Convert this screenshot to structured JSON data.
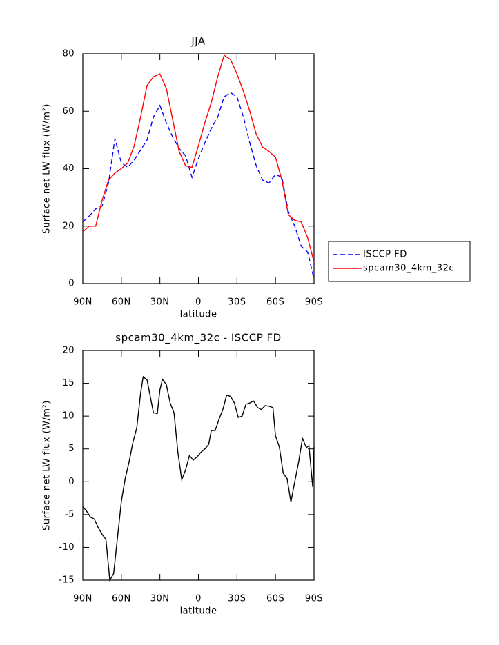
{
  "chart_data": [
    {
      "type": "line",
      "title": "JJA",
      "xlabel": "latitude",
      "ylabel": "Surface net LW flux (W/m²)",
      "x": [
        90,
        85,
        80,
        75,
        70,
        65,
        60,
        55,
        50,
        45,
        40,
        35,
        30,
        25,
        20,
        15,
        10,
        5,
        0,
        -5,
        -10,
        -15,
        -20,
        -25,
        -30,
        -35,
        -40,
        -45,
        -50,
        -55,
        -60,
        -65,
        -70,
        -75,
        -80,
        -85,
        -90
      ],
      "series": [
        {
          "name": "ISCCP FD",
          "color": "#0000ff",
          "linestyle": "dashed",
          "values": [
            21.5,
            23.5,
            26,
            27,
            35,
            50.5,
            42,
            40.5,
            43,
            46.5,
            50,
            58,
            62,
            56,
            51,
            47,
            44.5,
            37,
            43.5,
            49,
            54,
            58,
            65,
            66.5,
            65,
            58,
            49,
            41,
            36,
            35,
            38,
            37,
            25,
            20,
            13,
            11,
            1.5
          ]
        },
        {
          "name": "spcam30_4km_32c",
          "color": "#ff0000",
          "linestyle": "solid",
          "values": [
            18,
            20,
            20,
            29,
            36,
            38.5,
            40,
            42,
            48,
            58,
            69,
            72,
            73,
            68,
            57,
            46,
            41,
            40.5,
            48,
            56,
            63,
            72,
            79.5,
            78,
            73,
            67,
            60,
            52,
            47.5,
            46,
            44,
            36,
            24,
            22,
            21.5,
            16,
            7.5
          ]
        }
      ],
      "xlim": [
        90,
        -90
      ],
      "xticks": [
        {
          "value": 90,
          "label": "90N"
        },
        {
          "value": 60,
          "label": "60N"
        },
        {
          "value": 30,
          "label": "30N"
        },
        0,
        {
          "value": -30,
          "label": "30S"
        },
        {
          "value": -60,
          "label": "60S"
        },
        {
          "value": -90,
          "label": "90S"
        }
      ],
      "ylim": [
        0,
        80
      ],
      "yticks": [
        0,
        20,
        40,
        60,
        80
      ],
      "legend": "right"
    },
    {
      "type": "line",
      "title": "spcam30_4km_32c - ISCCP FD",
      "xlabel": "latitude",
      "ylabel": "Surface net LW flux (W/m²)",
      "x": [
        90,
        87,
        84,
        81,
        78,
        75,
        72,
        69,
        66,
        60,
        57,
        54,
        51,
        48,
        45,
        43,
        40,
        37,
        35,
        32,
        30,
        28,
        25,
        22,
        19,
        16,
        13,
        10,
        7,
        4,
        1,
        -2,
        -5,
        -8,
        -10,
        -13,
        -16,
        -19,
        -22,
        -25,
        -28,
        -31,
        -34,
        -37,
        -40,
        -43,
        -46,
        -49,
        -52,
        -55,
        -58,
        -60,
        -63,
        -66,
        -69,
        -72,
        -75,
        -78,
        -81,
        -84,
        -86,
        -89,
        -90
      ],
      "series": [
        {
          "name": null,
          "color": "#000000",
          "linestyle": "solid",
          "values": [
            -3.8,
            -4.5,
            -5.4,
            -5.7,
            -7,
            -8,
            -8.8,
            -15,
            -14,
            -3,
            0.5,
            3,
            6,
            8.2,
            13.5,
            16,
            15.5,
            12.5,
            10.5,
            10.4,
            14,
            15.6,
            14.8,
            12,
            10.5,
            4.5,
            0.3,
            1.8,
            4,
            3.3,
            3.8,
            4.5,
            5,
            5.7,
            7.8,
            7.8,
            9.5,
            11,
            13.2,
            13,
            12,
            9.8,
            10,
            11.8,
            12,
            12.3,
            11.3,
            11,
            11.6,
            11.5,
            11.3,
            7,
            5.3,
            1.3,
            0.5,
            -3.1,
            0,
            3,
            6.6,
            5.2,
            5.5,
            -0.8,
            5.3
          ]
        }
      ],
      "xlim": [
        90,
        -90
      ],
      "xticks": [
        {
          "value": 90,
          "label": "90N"
        },
        {
          "value": 60,
          "label": "60N"
        },
        {
          "value": 30,
          "label": "30N"
        },
        0,
        {
          "value": -30,
          "label": "30S"
        },
        {
          "value": -60,
          "label": "60S"
        },
        {
          "value": -90,
          "label": "90S"
        }
      ],
      "ylim": [
        -15,
        20
      ],
      "yticks": [
        -15,
        -10,
        -5,
        0,
        5,
        10,
        15,
        20
      ]
    }
  ]
}
